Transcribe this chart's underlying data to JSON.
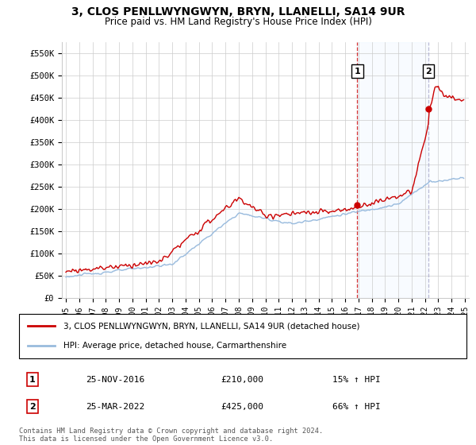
{
  "title": "3, CLOS PENLLWYNGWYN, BRYN, LLANELLI, SA14 9UR",
  "subtitle": "Price paid vs. HM Land Registry's House Price Index (HPI)",
  "legend_line1": "3, CLOS PENLLWYNGWYN, BRYN, LLANELLI, SA14 9UR (detached house)",
  "legend_line2": "HPI: Average price, detached house, Carmarthenshire",
  "annotation1_num": "1",
  "annotation1_date": "25-NOV-2016",
  "annotation1_price": "£210,000",
  "annotation1_hpi": "15% ↑ HPI",
  "annotation2_num": "2",
  "annotation2_date": "25-MAR-2022",
  "annotation2_price": "£425,000",
  "annotation2_hpi": "66% ↑ HPI",
  "footer": "Contains HM Land Registry data © Crown copyright and database right 2024.\nThis data is licensed under the Open Government Licence v3.0.",
  "price_color": "#cc0000",
  "hpi_color": "#99bbdd",
  "shading_color": "#ddeeff",
  "sale1_vline_color": "#cc0000",
  "sale2_vline_color": "#aaaacc",
  "ylim": [
    0,
    575000
  ],
  "yticks": [
    0,
    50000,
    100000,
    150000,
    200000,
    250000,
    300000,
    350000,
    400000,
    450000,
    500000,
    550000
  ],
  "ytick_labels": [
    "£0",
    "£50K",
    "£100K",
    "£150K",
    "£200K",
    "£250K",
    "£300K",
    "£350K",
    "£400K",
    "£450K",
    "£500K",
    "£550K"
  ],
  "background_color": "#ffffff",
  "grid_color": "#cccccc",
  "sale1_year": 2016.917,
  "sale1_price": 210000,
  "sale2_year": 2022.25,
  "sale2_price": 425000
}
